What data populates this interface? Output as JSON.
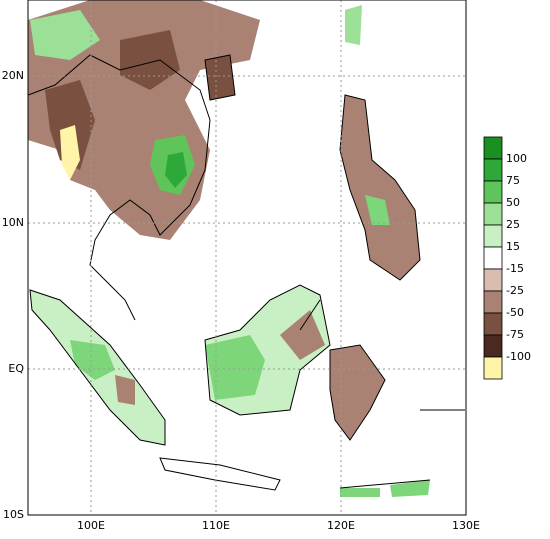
{
  "axes": {
    "lat_labels": [
      "20N",
      "10N",
      "EQ",
      "10S"
    ],
    "lon_labels": [
      "100E",
      "110E",
      "120E",
      "130E"
    ]
  },
  "legend": {
    "colors": [
      "#1a8f22",
      "#2fa83a",
      "#5fc45a",
      "#9be096",
      "#c9f0c4",
      "#ffffff",
      "#d9bdb0",
      "#a98274",
      "#7a5040",
      "#4a2a20",
      "#fff4a8"
    ],
    "labels": [
      "100",
      "75",
      "50",
      "25",
      "15",
      "-15",
      "-25",
      "-50",
      "-75",
      "-100"
    ]
  }
}
